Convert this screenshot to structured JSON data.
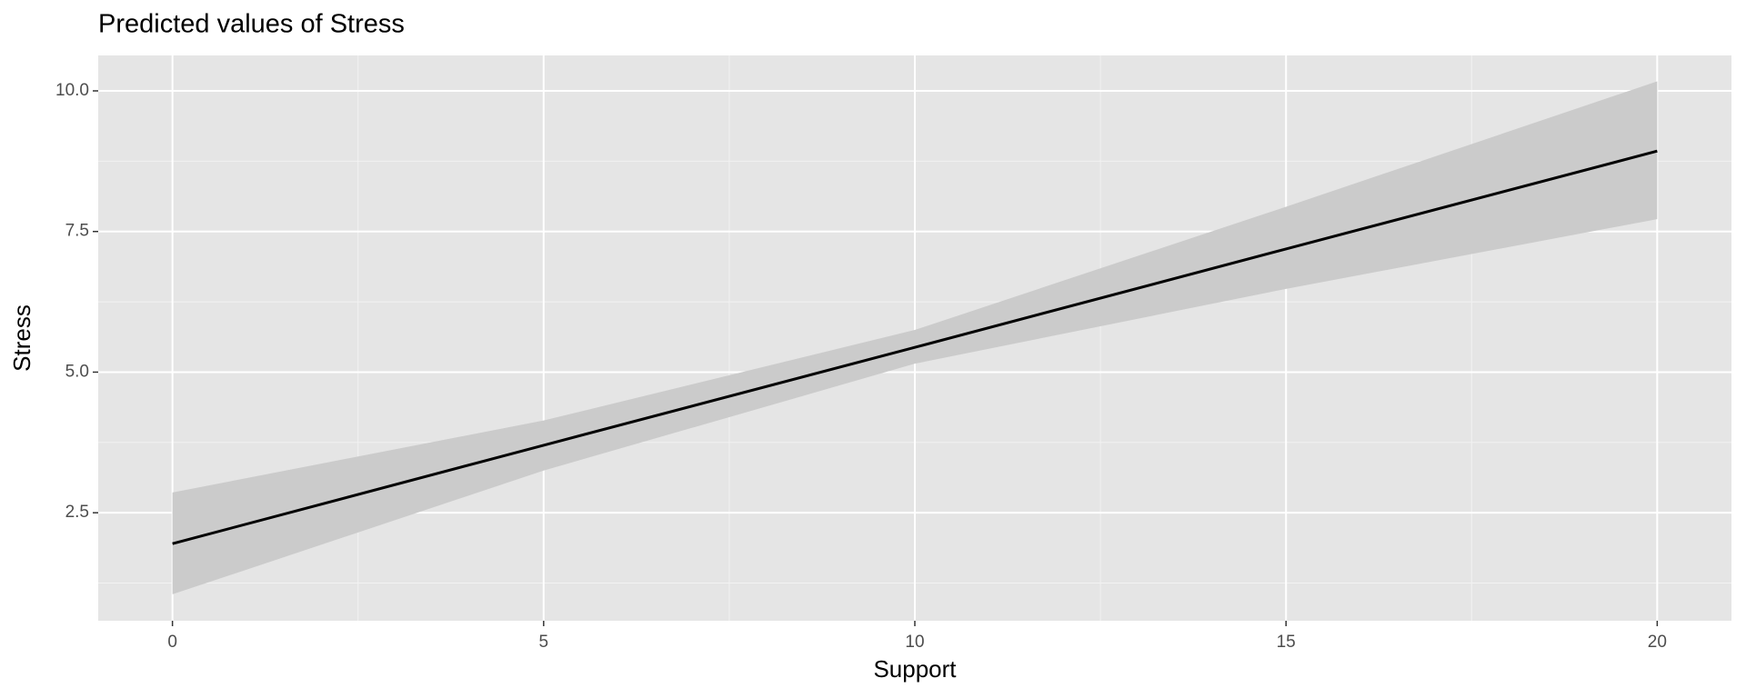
{
  "chart_data": {
    "type": "line",
    "title": "Predicted values of Stress",
    "x_label": "Support",
    "y_label": "Stress",
    "x": [
      0,
      5,
      10,
      15,
      20
    ],
    "values": [
      1.95,
      3.7,
      5.44,
      7.19,
      8.93
    ],
    "lower": [
      1.05,
      3.25,
      5.15,
      6.48,
      7.72
    ],
    "upper": [
      2.86,
      4.14,
      5.75,
      7.94,
      10.17
    ],
    "color": "#000000",
    "band_color": "#cbcbcb",
    "xlim": [
      -1,
      21
    ],
    "ylim": [
      0.58,
      10.63
    ],
    "xticks": [
      0,
      5,
      10,
      15,
      20
    ],
    "yticks": [
      2.5,
      {
        "value": 5,
        "label": "5.0"
      },
      7.5,
      {
        "value": 10,
        "label": "10.0"
      }
    ],
    "grid": true
  }
}
